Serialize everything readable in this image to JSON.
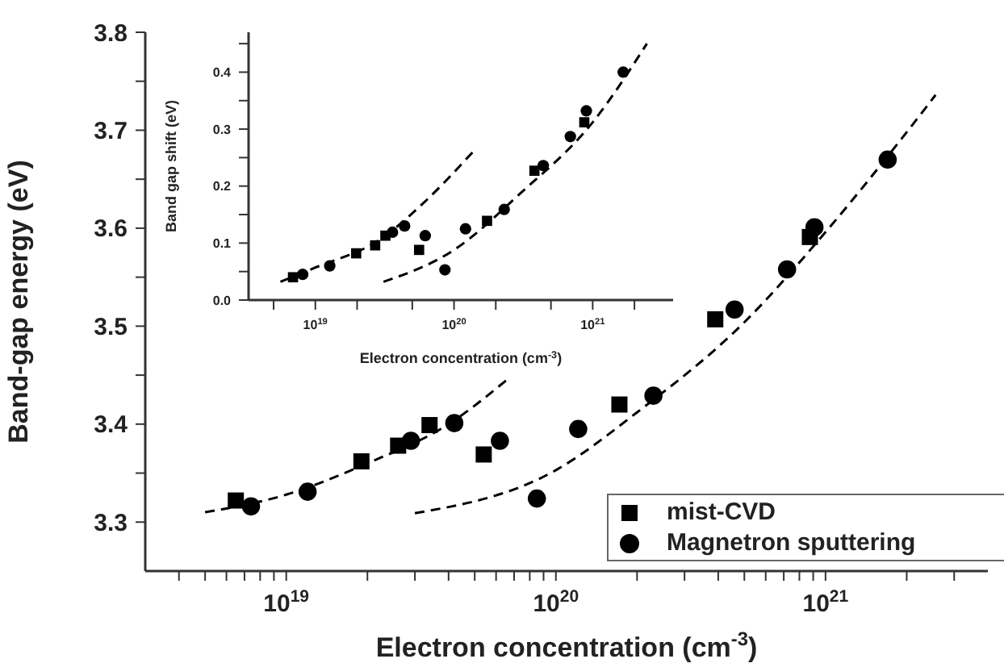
{
  "chart_data": [
    {
      "type": "scatter",
      "xlabel": "Electron concentration (cm$^{-3}$)",
      "ylabel": "Band-gap energy (eV)",
      "log": "x",
      "legend": "bottom right",
      "xlim": [
        3e+18,
        4e+21
      ],
      "xticks": [
        {
          "value": 4e+18,
          "label": null
        },
        {
          "value": 5e+18,
          "label": null
        },
        {
          "value": 6e+18,
          "label": null
        },
        {
          "value": 7e+18,
          "label": null
        },
        {
          "value": 8e+18,
          "label": null
        },
        {
          "value": 9e+18,
          "label": null
        },
        {
          "value": 1e+19,
          "label": "10$^{19}$"
        },
        {
          "value": 2e+19,
          "label": null
        },
        {
          "value": 3e+19,
          "label": null
        },
        {
          "value": 4e+19,
          "label": null
        },
        {
          "value": 5e+19,
          "label": null
        },
        {
          "value": 6e+19,
          "label": null
        },
        {
          "value": 7e+19,
          "label": null
        },
        {
          "value": 8e+19,
          "label": null
        },
        {
          "value": 9e+19,
          "label": null
        },
        {
          "value": 1e+20,
          "label": "10$^{20}$"
        },
        {
          "value": 2e+20,
          "label": null
        },
        {
          "value": 3e+20,
          "label": null
        },
        {
          "value": 4e+20,
          "label": null
        },
        {
          "value": 5e+20,
          "label": null
        },
        {
          "value": 6e+20,
          "label": null
        },
        {
          "value": 7e+20,
          "label": null
        },
        {
          "value": 8e+20,
          "label": null
        },
        {
          "value": 9e+20,
          "label": null
        },
        {
          "value": 1e+21,
          "label": "10$^{21}$"
        },
        {
          "value": 2e+21,
          "label": null
        },
        {
          "value": 3e+21,
          "label": null
        }
      ],
      "ylim": [
        3.25,
        3.8
      ],
      "yticks": [
        3.3,
        {
          "value": 3.35,
          "label": null
        },
        3.4,
        {
          "value": 3.45,
          "label": null
        },
        3.5,
        {
          "value": 3.55,
          "label": null
        },
        3.6,
        {
          "value": 3.65,
          "label": null
        },
        3.7,
        {
          "value": 3.75,
          "label": null
        },
        3.8
      ],
      "series": [
        {
          "name": "mist-CVD",
          "color": "#000000",
          "marker": "square",
          "x": [
            6.5e+18,
            1.9e+19,
            2.6e+19,
            3.4e+19,
            5.4e+19,
            1.72e+20,
            3.9e+20,
            8.75e+20
          ],
          "values": [
            3.322,
            3.362,
            3.378,
            3.399,
            3.369,
            3.42,
            3.507,
            3.591
          ]
        },
        {
          "name": "Magnetron sputtering",
          "color": "#000000",
          "marker": "circle",
          "x": [
            7.4e+18,
            1.2e+19,
            2.9e+19,
            4.2e+19,
            6.2e+19,
            8.5e+19,
            1.21e+20,
            2.3e+20,
            4.6e+20,
            7.2e+20,
            9.1e+20,
            1.7e+21
          ],
          "values": [
            3.316,
            3.331,
            3.383,
            3.401,
            3.383,
            3.324,
            3.395,
            3.429,
            3.517,
            3.558,
            3.601,
            3.67
          ]
        },
        {
          "type": "line",
          "color": "#000000",
          "line_style": "dashed",
          "x": [
            5e+18,
            1e+19,
            2e+19,
            4e+19,
            6.7e+19
          ],
          "values": [
            3.31,
            3.328,
            3.36,
            3.4,
            3.447
          ]
        },
        {
          "type": "line",
          "color": "#000000",
          "line_style": "dashed",
          "x": [
            3e+19,
            1e+20,
            2e+20,
            5e+20,
            1e+21,
            2e+21,
            2.56e+21
          ],
          "values": [
            3.309,
            3.353,
            3.412,
            3.504,
            3.596,
            3.698,
            3.736
          ]
        }
      ]
    },
    {
      "type": "scatter",
      "xlabel": "Electron concentration (cm$^{-3}$)",
      "ylabel": "Band gap shift (eV)",
      "log": "x",
      "xlim": [
        3.3e+18,
        3.8e+21
      ],
      "xticks": [
        {
          "value": 5e+18,
          "label": null
        },
        {
          "value": 1e+19,
          "label": "10$^{19}$"
        },
        {
          "value": 2e+19,
          "label": null
        },
        {
          "value": 5e+19,
          "label": null
        },
        {
          "value": 1e+20,
          "label": "10$^{20}$"
        },
        {
          "value": 2e+20,
          "label": null
        },
        {
          "value": 5e+20,
          "label": null
        },
        {
          "value": 1e+21,
          "label": "10$^{21}$"
        },
        {
          "value": 2e+21,
          "label": null
        }
      ],
      "ylim": [
        0,
        0.47
      ],
      "yticks": [
        {
          "value": 0,
          "label": "0.0"
        },
        {
          "value": 0.05,
          "label": null
        },
        0.1,
        {
          "value": 0.15,
          "label": null
        },
        0.2,
        {
          "value": 0.25,
          "label": null
        },
        0.3,
        {
          "value": 0.35,
          "label": null
        },
        0.4,
        {
          "value": 0.45,
          "label": null
        }
      ],
      "series": [
        {
          "color": "#000000",
          "marker": "square",
          "x": [
            6.9e+18,
            1.97e+19,
            2.7e+19,
            3.2e+19,
            5.6e+19,
            1.73e+20,
            3.8e+20,
            8.7e+20
          ],
          "values": [
            0.04,
            0.082,
            0.096,
            0.113,
            0.088,
            0.139,
            0.227,
            0.312
          ]
        },
        {
          "color": "#000000",
          "marker": "circle",
          "x": [
            8.1e+18,
            1.27e+19,
            3.6e+19,
            4.4e+19,
            6.2e+19,
            8.6e+19,
            1.21e+20,
            2.3e+20,
            4.4e+20,
            6.9e+20,
            9e+20,
            1.66e+21
          ],
          "values": [
            0.045,
            0.06,
            0.119,
            0.13,
            0.113,
            0.053,
            0.125,
            0.159,
            0.236,
            0.287,
            0.332,
            0.4
          ]
        },
        {
          "type": "line",
          "color": "#000000",
          "line_style": "dashed",
          "x": [
            5.6e+18,
            1e+19,
            3e+19,
            6e+19,
            1.38e+20
          ],
          "values": [
            0.032,
            0.057,
            0.108,
            0.17,
            0.261
          ]
        },
        {
          "type": "line",
          "color": "#000000",
          "line_style": "dashed",
          "x": [
            3.1e+19,
            1e+20,
            3e+20,
            1e+21,
            2.46e+21
          ],
          "values": [
            0.032,
            0.088,
            0.187,
            0.312,
            0.45
          ]
        }
      ]
    }
  ]
}
